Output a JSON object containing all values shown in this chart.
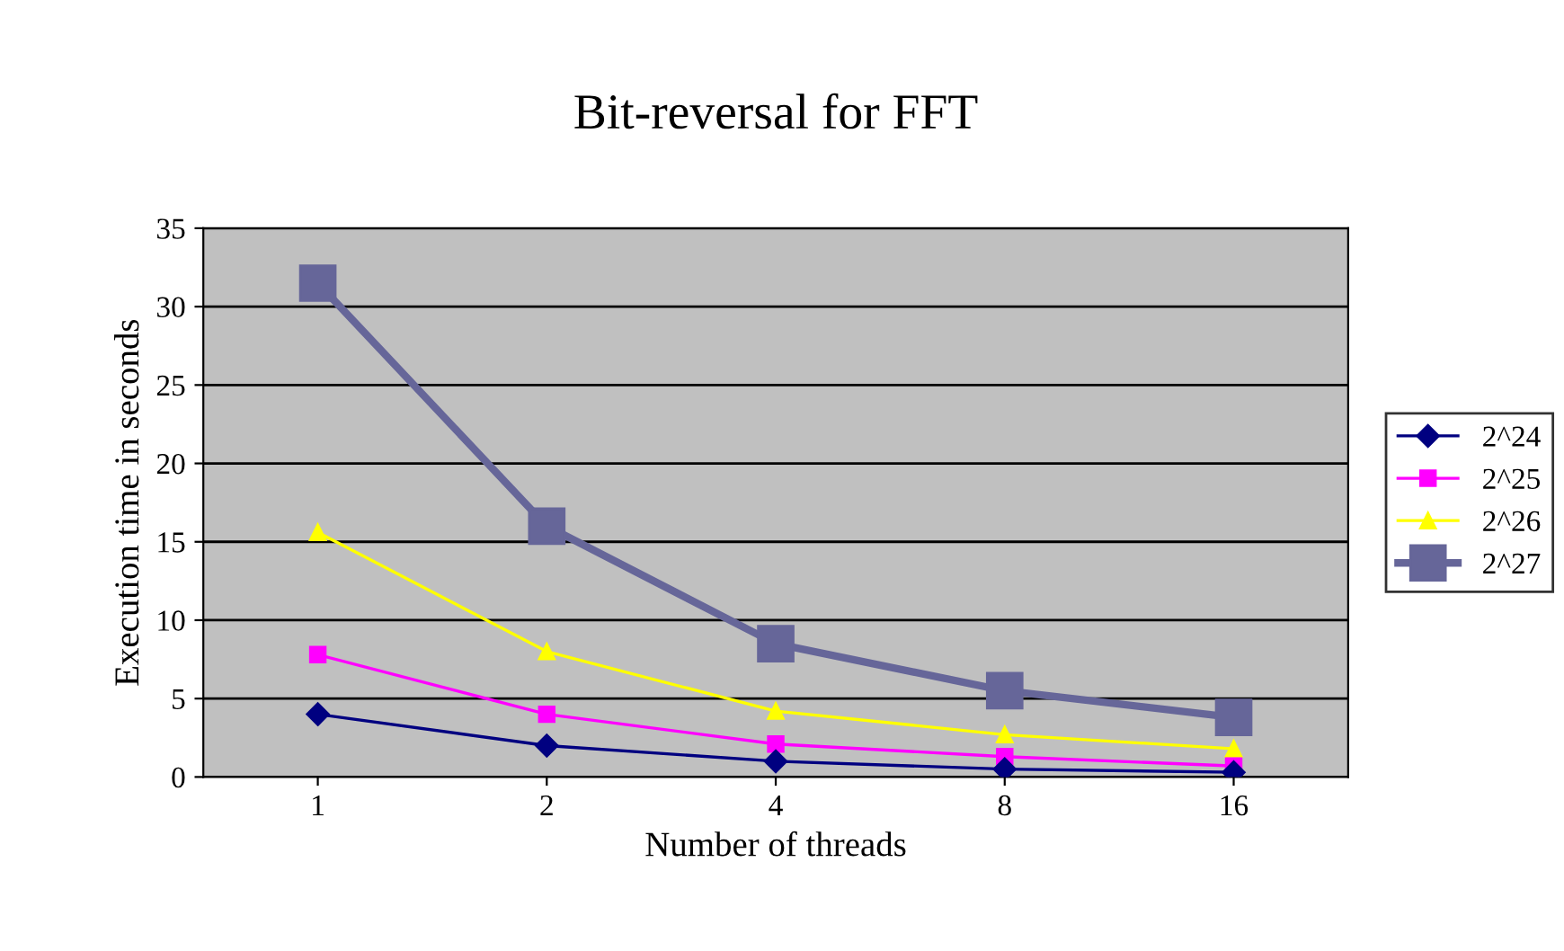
{
  "chart_data": {
    "type": "line",
    "title": "Bit-reversal for FFT",
    "xlabel": "Number of threads",
    "ylabel": "Execution time in seconds",
    "categories": [
      "1",
      "2",
      "4",
      "8",
      "16"
    ],
    "series": [
      {
        "name": "2^24",
        "color": "#000080",
        "marker": "diamond",
        "values": [
          4.0,
          2.0,
          1.0,
          0.5,
          0.3
        ]
      },
      {
        "name": "2^25",
        "color": "#ff00ff",
        "marker": "square",
        "values": [
          7.8,
          4.0,
          2.1,
          1.3,
          0.7
        ]
      },
      {
        "name": "2^26",
        "color": "#ffff00",
        "marker": "triangle",
        "values": [
          15.6,
          8.0,
          4.2,
          2.7,
          1.8
        ]
      },
      {
        "name": "2^27",
        "color": "#666699",
        "marker": "square",
        "values": [
          31.5,
          16.0,
          8.5,
          5.5,
          3.8
        ]
      }
    ],
    "ylim": [
      0,
      35
    ],
    "yticks": [
      0,
      5,
      10,
      15,
      20,
      25,
      30,
      35
    ],
    "grid": "y",
    "legend": "right"
  }
}
